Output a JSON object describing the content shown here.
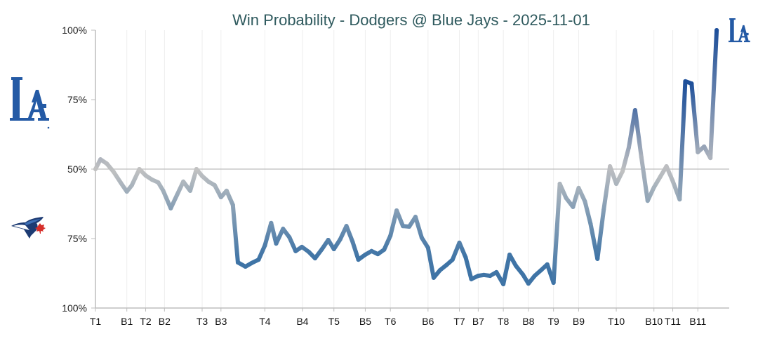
{
  "chart_data": {
    "type": "line",
    "title": "Win Probability - Dodgers @ Blue Jays - 2025-11-01",
    "xlabel": "",
    "ylabel": "",
    "y_axis": {
      "ticks": [
        {
          "value": 100,
          "label": "100%"
        },
        {
          "value": 75,
          "label": "75%"
        },
        {
          "value": 50,
          "label": "50%"
        },
        {
          "value": 25,
          "label": "75%"
        },
        {
          "value": 0,
          "label": "100%"
        }
      ],
      "ylim": [
        0,
        100
      ],
      "reference_line": 50
    },
    "x_axis": {
      "xlim": [
        0,
        101
      ],
      "ticks": [
        {
          "index": 0,
          "label": "T1"
        },
        {
          "index": 5,
          "label": "B1"
        },
        {
          "index": 8,
          "label": "T2"
        },
        {
          "index": 11,
          "label": "B2"
        },
        {
          "index": 17,
          "label": "T3"
        },
        {
          "index": 20,
          "label": "B3"
        },
        {
          "index": 27,
          "label": "T4"
        },
        {
          "index": 33,
          "label": "B4"
        },
        {
          "index": 38,
          "label": "T5"
        },
        {
          "index": 43,
          "label": "B5"
        },
        {
          "index": 47,
          "label": "T6"
        },
        {
          "index": 53,
          "label": "B6"
        },
        {
          "index": 58,
          "label": "T7"
        },
        {
          "index": 61,
          "label": "B7"
        },
        {
          "index": 65,
          "label": "T8"
        },
        {
          "index": 69,
          "label": "B8"
        },
        {
          "index": 73,
          "label": "T9"
        },
        {
          "index": 77,
          "label": "B9"
        },
        {
          "index": 83,
          "label": "T10"
        },
        {
          "index": 89,
          "label": "B10"
        },
        {
          "index": 92,
          "label": "T11"
        },
        {
          "index": 96,
          "label": "B11"
        }
      ],
      "grid": true
    },
    "series": [
      {
        "name": "Dodgers Win Probability",
        "x": [
          0,
          0.8,
          1.8,
          2.9,
          4,
          5,
          5.8,
          7,
          8,
          9,
          10,
          10.8,
          12,
          13,
          14,
          15.1,
          16.1,
          17,
          18,
          19,
          20,
          20.9,
          21.9,
          22.7,
          23.9,
          24.9,
          26,
          27,
          28,
          28.8,
          29.9,
          30.9,
          31.9,
          32.9,
          34,
          35,
          36.1,
          37.1,
          38,
          39,
          40,
          41,
          41.9,
          43,
          44,
          45,
          46,
          47,
          48,
          49,
          50,
          51,
          52,
          53,
          53.9,
          54.9,
          55.9,
          56.9,
          58,
          59,
          59.9,
          61,
          61.9,
          62.9,
          63.9,
          65,
          66,
          67,
          68.1,
          69,
          70,
          71,
          72,
          73,
          74,
          75,
          76.1,
          77,
          78,
          78.9,
          80,
          81,
          82,
          83,
          84,
          85,
          86,
          87,
          88,
          89,
          90,
          91,
          92,
          93.1,
          94,
          95,
          96,
          97,
          98,
          99
        ],
        "values": [
          50.0,
          53.5,
          52.0,
          49.0,
          45.2,
          41.9,
          44.2,
          50.0,
          47.7,
          46.2,
          45.2,
          42.2,
          35.9,
          40.7,
          45.5,
          42.2,
          50.0,
          47.5,
          45.5,
          44.2,
          39.9,
          42.2,
          37.1,
          16.4,
          14.9,
          16.2,
          17.4,
          22.5,
          30.6,
          23.2,
          28.5,
          25.5,
          20.5,
          22.0,
          20.2,
          17.9,
          21.2,
          24.5,
          21.2,
          24.7,
          29.5,
          23.7,
          17.4,
          19.2,
          20.5,
          19.4,
          21.0,
          26.0,
          35.1,
          29.5,
          29.3,
          32.8,
          25.3,
          21.7,
          10.9,
          13.6,
          15.4,
          17.4,
          23.5,
          18.2,
          10.4,
          11.6,
          11.9,
          11.6,
          12.9,
          8.6,
          19.2,
          15.2,
          12.1,
          8.8,
          11.6,
          13.6,
          15.7,
          9.1,
          44.7,
          39.6,
          36.4,
          43.2,
          38.4,
          30.3,
          17.7,
          35.4,
          51.0,
          44.7,
          49.2,
          57.8,
          71.2,
          54.3,
          38.6,
          43.4,
          47.2,
          51.0,
          45.7,
          39.1,
          81.6,
          80.8,
          56.1,
          58.1,
          54.0,
          100.0
        ]
      }
    ],
    "colors": {
      "dodgers_blue": "#1e4f9a",
      "bluejays_blue": "#3f74a6",
      "neutral_gray": "#c2c2c2",
      "title_color": "#2f5a5e",
      "axis_color": "#bdbdbd",
      "grid_color": "#eeeeee"
    },
    "legend": {
      "top_team": "Dodgers (LA logo, top-left)",
      "bottom_team": "Blue Jays (bird logo, bottom-left)",
      "winner_marker": "Dodgers logo at end of line (top-right)"
    }
  }
}
